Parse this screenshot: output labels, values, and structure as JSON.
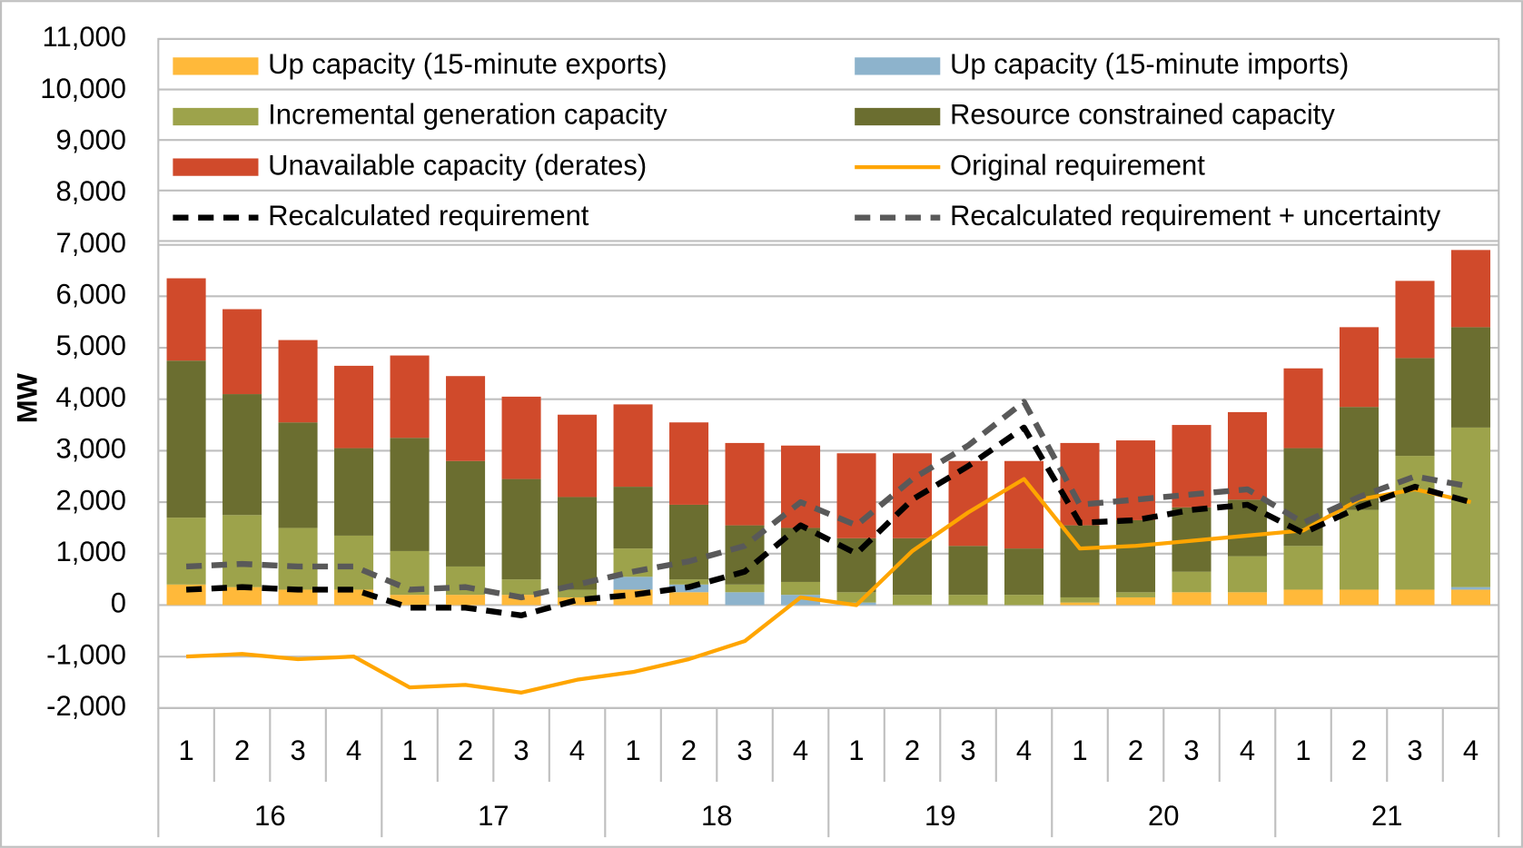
{
  "chart_data": {
    "type": "bar",
    "y_label": "MW",
    "categories": [
      "1",
      "2",
      "3",
      "4",
      "1",
      "2",
      "3",
      "4",
      "1",
      "2",
      "3",
      "4",
      "1",
      "2",
      "3",
      "4",
      "1",
      "2",
      "3",
      "4",
      "1",
      "2",
      "3",
      "4"
    ],
    "group_labels": [
      "16",
      "17",
      "18",
      "19",
      "20",
      "21"
    ],
    "ylim": [
      -2000,
      11000
    ],
    "yticks": [
      {
        "value": -2000,
        "label": "-2,000"
      },
      {
        "value": -1000,
        "label": "-1,000"
      },
      0,
      {
        "value": 1000,
        "label": "1,000"
      },
      {
        "value": 2000,
        "label": "2,000"
      },
      {
        "value": 3000,
        "label": "3,000"
      },
      {
        "value": 4000,
        "label": "4,000"
      },
      {
        "value": 5000,
        "label": "5,000"
      },
      {
        "value": 6000,
        "label": "6,000"
      },
      {
        "value": 7000,
        "label": "7,000"
      },
      {
        "value": 8000,
        "label": "8,000"
      },
      {
        "value": 9000,
        "label": "9,000"
      },
      {
        "value": 10000,
        "label": "10,000"
      },
      {
        "value": 11000,
        "label": "11,000"
      }
    ],
    "grid": true,
    "legend": "top",
    "series": [
      {
        "name": "Up capacity (15-minute exports)",
        "type": "bar",
        "color": "#ffb93a",
        "values": [
          400,
          350,
          300,
          300,
          200,
          200,
          200,
          150,
          300,
          250,
          0,
          0,
          0,
          0,
          0,
          0,
          50,
          150,
          250,
          250,
          300,
          300,
          300,
          300
        ]
      },
      {
        "name": "Up capacity (15-minute imports)",
        "type": "bar",
        "color": "#8db3cc",
        "values": [
          0,
          0,
          0,
          0,
          0,
          0,
          0,
          0,
          250,
          150,
          250,
          200,
          50,
          0,
          0,
          0,
          0,
          0,
          0,
          0,
          0,
          0,
          0,
          50
        ]
      },
      {
        "name": "Incremental generation capacity",
        "type": "bar",
        "color": "#9da34b",
        "values": [
          1300,
          1400,
          1200,
          1050,
          850,
          550,
          300,
          150,
          550,
          100,
          150,
          250,
          200,
          200,
          200,
          200,
          100,
          100,
          400,
          700,
          850,
          1550,
          2600,
          3100
        ]
      },
      {
        "name": "Resource constrained capacity",
        "type": "bar",
        "color": "#6b6e30",
        "values": [
          3050,
          2350,
          2050,
          1700,
          2200,
          2050,
          1950,
          1800,
          1200,
          1450,
          1150,
          1050,
          1050,
          1100,
          950,
          900,
          1400,
          1400,
          1250,
          1100,
          1900,
          2000,
          1900,
          1950
        ]
      },
      {
        "name": "Unavailable capacity (derates)",
        "type": "bar",
        "color": "#d04a2b",
        "values": [
          1600,
          1650,
          1600,
          1600,
          1600,
          1650,
          1600,
          1600,
          1600,
          1600,
          1600,
          1600,
          1650,
          1650,
          1650,
          1700,
          1600,
          1550,
          1600,
          1700,
          1550,
          1550,
          1500,
          1500
        ]
      },
      {
        "name": "Original requirement",
        "type": "line",
        "color": "#ffa500",
        "dashed": false,
        "values": [
          -1000,
          -950,
          -1050,
          -1000,
          -1600,
          -1550,
          -1700,
          -1450,
          -1300,
          -1050,
          -700,
          150,
          0,
          1050,
          1800,
          2450,
          1100,
          1150,
          1250,
          1350,
          1450,
          2050,
          2250,
          2000
        ]
      },
      {
        "name": "Recalculated requirement",
        "type": "line",
        "color": "#000000",
        "dashed": true,
        "values": [
          300,
          350,
          300,
          300,
          -50,
          -50,
          -200,
          100,
          200,
          350,
          650,
          1550,
          1000,
          2050,
          2700,
          3450,
          1600,
          1650,
          1850,
          1950,
          1400,
          1900,
          2300,
          2000
        ]
      },
      {
        "name": "Recalculated requirement + uncertainty",
        "type": "line",
        "color": "#595959",
        "dashed": true,
        "values": [
          750,
          800,
          750,
          750,
          300,
          350,
          150,
          400,
          650,
          850,
          1150,
          2000,
          1550,
          2450,
          3100,
          3950,
          1950,
          2050,
          2150,
          2250,
          1600,
          2100,
          2500,
          2300
        ]
      }
    ]
  }
}
